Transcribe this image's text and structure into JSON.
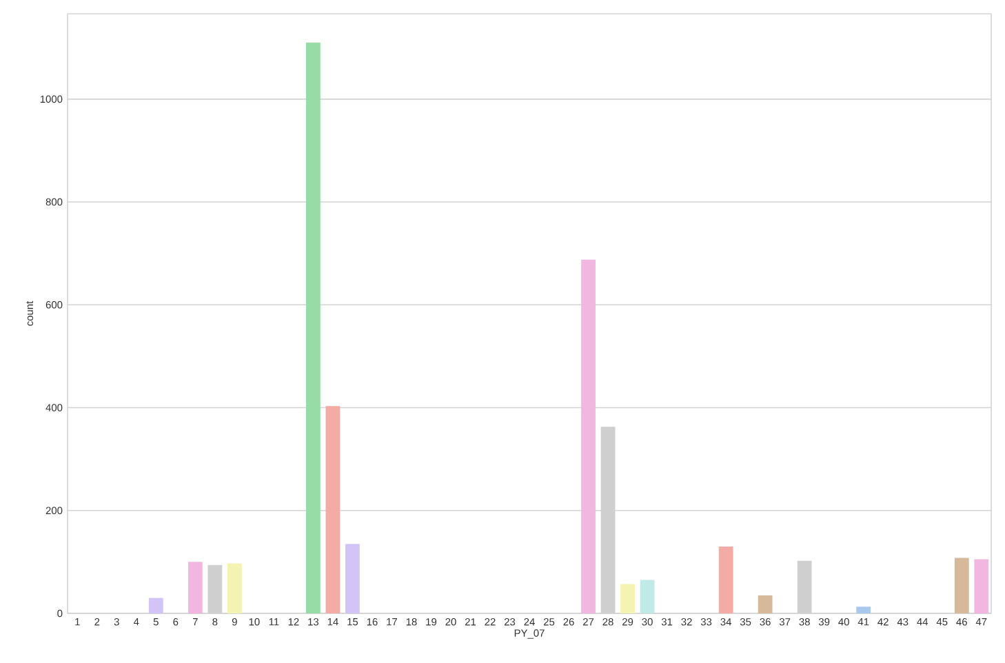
{
  "chart_data": {
    "type": "bar",
    "xlabel": "PY_07",
    "ylabel": "count",
    "categories": [
      "1",
      "2",
      "3",
      "4",
      "5",
      "6",
      "7",
      "8",
      "9",
      "10",
      "11",
      "12",
      "13",
      "14",
      "15",
      "16",
      "17",
      "18",
      "19",
      "20",
      "21",
      "22",
      "23",
      "24",
      "25",
      "26",
      "27",
      "28",
      "29",
      "30",
      "31",
      "32",
      "33",
      "34",
      "35",
      "36",
      "37",
      "38",
      "39",
      "40",
      "41",
      "42",
      "43",
      "44",
      "45",
      "46",
      "47"
    ],
    "values": [
      0,
      0,
      0,
      0,
      30,
      0,
      100,
      94,
      97,
      0,
      0,
      0,
      1110,
      403,
      135,
      0,
      0,
      0,
      0,
      0,
      0,
      0,
      0,
      0,
      0,
      0,
      688,
      363,
      57,
      65,
      0,
      0,
      0,
      130,
      0,
      35,
      0,
      102,
      0,
      0,
      13,
      0,
      0,
      0,
      0,
      108,
      105
    ],
    "colors": [
      "#a8c8ec",
      "#f6bc96",
      "#97dba7",
      "#f4aba5",
      "#d3c4f7",
      "#d6b999",
      "#f1b7e0",
      "#cfcfcf",
      "#f3f3b2",
      "#bfeae6",
      "#a8c8ec",
      "#f6bc96",
      "#97dba7",
      "#f4aba5",
      "#d3c4f7",
      "#d6b999",
      "#f1b7e0",
      "#cfcfcf",
      "#f3f3b2",
      "#bfeae6",
      "#a8c8ec",
      "#f6bc96",
      "#97dba7",
      "#f4aba5",
      "#d3c4f7",
      "#d6b999",
      "#f1b7e0",
      "#cfcfcf",
      "#f3f3b2",
      "#bfeae6",
      "#a8c8ec",
      "#f6bc96",
      "#97dba7",
      "#f4aba5",
      "#d3c4f7",
      "#d6b999",
      "#f1b7e0",
      "#cfcfcf",
      "#f3f3b2",
      "#bfeae6",
      "#a8c8ec",
      "#f6bc96",
      "#97dba7",
      "#f4aba5",
      "#d3c4f7",
      "#d6b999",
      "#f1b7e0"
    ],
    "ylim": [
      0,
      1166
    ],
    "yticks": [
      0,
      200,
      400,
      600,
      800,
      1000
    ],
    "grid": "y"
  }
}
